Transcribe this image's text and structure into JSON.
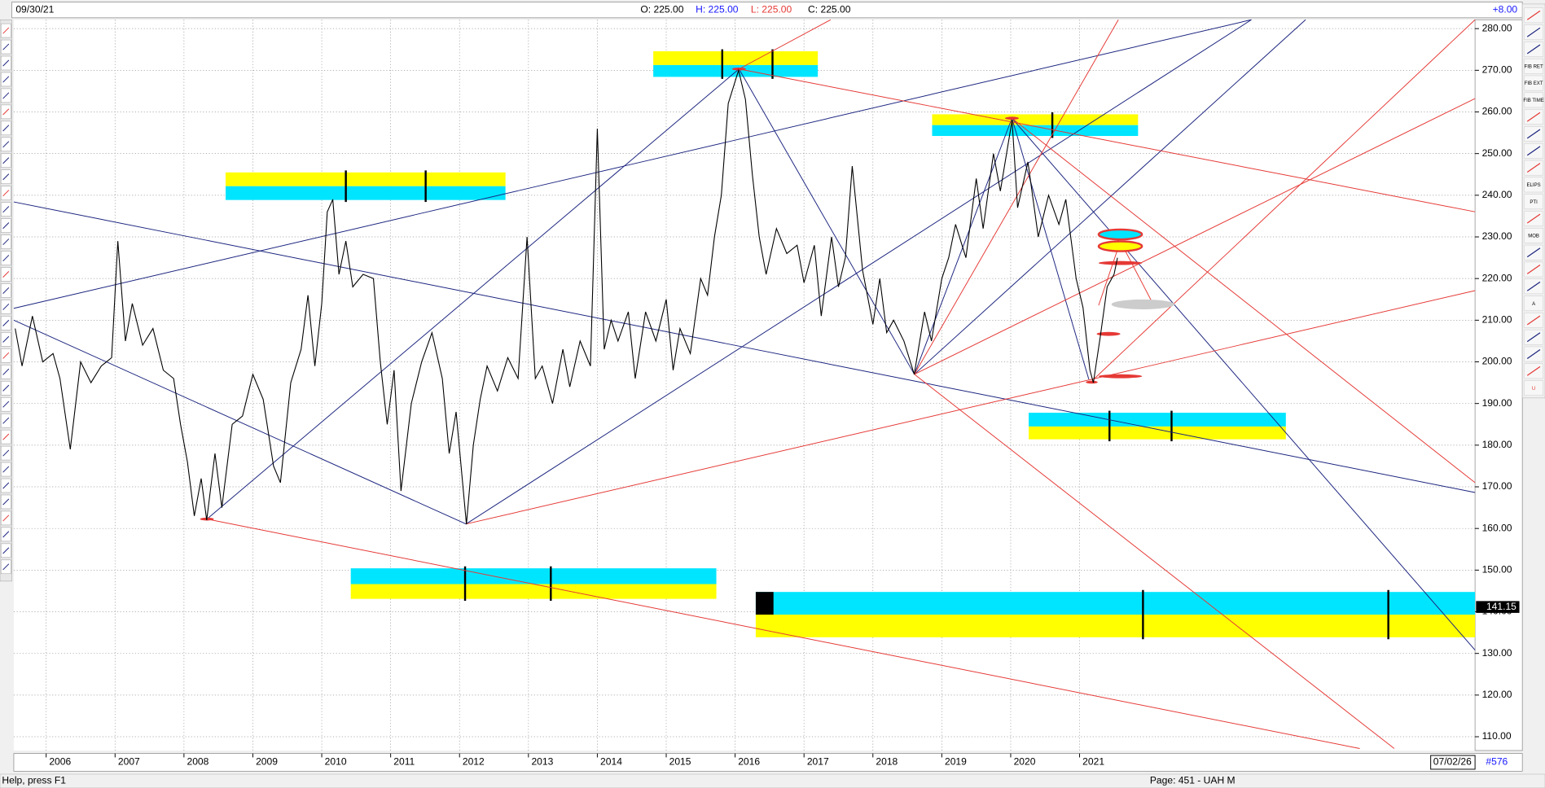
{
  "header": {
    "date": "09/30/21",
    "open": "O: 225.00",
    "high": "H: 225.00",
    "low": "L: 225.00",
    "close": "C: 225.00",
    "change": "+8.00"
  },
  "chart_data": {
    "type": "line",
    "x": [
      2005.55,
      2005.65,
      2005.8,
      2005.95,
      2006.1,
      2006.2,
      2006.35,
      2006.5,
      2006.65,
      2006.8,
      2006.95,
      2007.04,
      2007.15,
      2007.25,
      2007.4,
      2007.55,
      2007.7,
      2007.85,
      2007.95,
      2008.05,
      2008.15,
      2008.25,
      2008.33,
      2008.45,
      2008.55,
      2008.7,
      2008.85,
      2009.0,
      2009.15,
      2009.3,
      2009.4,
      2009.55,
      2009.7,
      2009.8,
      2009.9,
      2010.0,
      2010.08,
      2010.16,
      2010.25,
      2010.35,
      2010.45,
      2010.6,
      2010.75,
      2010.85,
      2010.95,
      2011.05,
      2011.15,
      2011.3,
      2011.45,
      2011.6,
      2011.75,
      2011.85,
      2011.95,
      2012.1,
      2012.2,
      2012.3,
      2012.4,
      2012.55,
      2012.7,
      2012.85,
      2012.98,
      2013.1,
      2013.2,
      2013.35,
      2013.5,
      2013.6,
      2013.75,
      2013.9,
      2014.0,
      2014.1,
      2014.2,
      2014.3,
      2014.45,
      2014.55,
      2014.7,
      2014.85,
      2015.0,
      2015.1,
      2015.2,
      2015.35,
      2015.5,
      2015.6,
      2015.7,
      2015.8,
      2015.9,
      2016.05,
      2016.15,
      2016.25,
      2016.35,
      2016.45,
      2016.6,
      2016.75,
      2016.9,
      2017.0,
      2017.15,
      2017.25,
      2017.4,
      2017.5,
      2017.6,
      2017.7,
      2017.85,
      2018.0,
      2018.1,
      2018.2,
      2018.3,
      2018.45,
      2018.6,
      2018.75,
      2018.85,
      2019.0,
      2019.1,
      2019.2,
      2019.35,
      2019.5,
      2019.6,
      2019.75,
      2019.85,
      2020.02,
      2020.1,
      2020.25,
      2020.4,
      2020.55,
      2020.7,
      2020.8,
      2020.95,
      2021.05,
      2021.15,
      2021.2,
      2021.3,
      2021.4,
      2021.5,
      2021.55
    ],
    "series": [
      {
        "color": "#000000",
        "values": [
          208,
          199,
          211,
          200,
          202,
          196,
          179,
          200,
          195,
          199,
          201,
          229,
          205,
          214,
          204,
          208,
          198,
          196,
          185,
          176,
          163,
          172,
          162,
          178,
          165,
          185,
          187,
          197,
          191,
          175,
          171,
          195,
          203,
          216,
          199,
          214,
          236,
          239,
          221,
          229,
          218,
          221,
          220,
          200,
          185,
          198,
          169,
          190,
          200,
          207,
          196,
          178,
          188,
          161,
          180,
          191,
          199,
          193,
          201,
          196,
          230,
          196,
          199,
          190,
          203,
          194,
          205,
          199,
          256,
          203,
          210,
          205,
          212,
          196,
          212,
          205,
          215,
          198,
          208,
          202,
          220,
          216,
          230,
          240,
          262,
          270,
          263,
          245,
          230,
          221,
          232,
          226,
          228,
          219,
          228,
          211,
          230,
          218,
          225,
          247,
          222,
          209,
          220,
          207,
          210,
          205,
          197,
          212,
          205,
          220,
          225,
          233,
          225,
          244,
          232,
          250,
          241,
          258,
          237,
          248,
          230,
          240,
          233,
          239,
          220,
          213,
          198,
          195,
          206,
          218,
          221,
          225
        ]
      }
    ],
    "xlim": [
      2005.53,
      2026.74
    ],
    "xticks": [
      2006,
      2007,
      2008,
      2009,
      2010,
      2011,
      2012,
      2013,
      2014,
      2015,
      2016,
      2017,
      2018,
      2019,
      2020,
      2021
    ],
    "ylim": [
      106.69,
      282.13
    ],
    "yticks": [
      {
        "value": 110,
        "label": "110.00"
      },
      {
        "value": 120,
        "label": "120.00"
      },
      {
        "value": 130,
        "label": "130.00"
      },
      {
        "value": 140,
        "label": "140.00"
      },
      {
        "value": 150,
        "label": "150.00"
      },
      {
        "value": 160,
        "label": "160.00"
      },
      {
        "value": 170,
        "label": "170.00"
      },
      {
        "value": 180,
        "label": "180.00"
      },
      {
        "value": 190,
        "label": "190.00"
      },
      {
        "value": 200,
        "label": "200.00"
      },
      {
        "value": 210,
        "label": "210.00"
      },
      {
        "value": 220,
        "label": "220.00"
      },
      {
        "value": 230,
        "label": "230.00"
      },
      {
        "value": 240,
        "label": "240.00"
      },
      {
        "value": 250,
        "label": "250.00"
      },
      {
        "value": 260,
        "label": "260.00"
      },
      {
        "value": 270,
        "label": "270.00"
      },
      {
        "value": 280,
        "label": "280.00"
      }
    ],
    "price_marker": 141.15,
    "grid": true
  },
  "axis_footer": {
    "end_date": "07/02/26",
    "count": "#576"
  },
  "toolbar": [
    "FIB RET",
    "FIB EXT",
    "FIB TIME",
    "ELIPS",
    "PTI",
    "MOB",
    "A",
    "U"
  ],
  "status": {
    "help": "Help, press F1",
    "page": "Page: 451 - UAH M"
  }
}
